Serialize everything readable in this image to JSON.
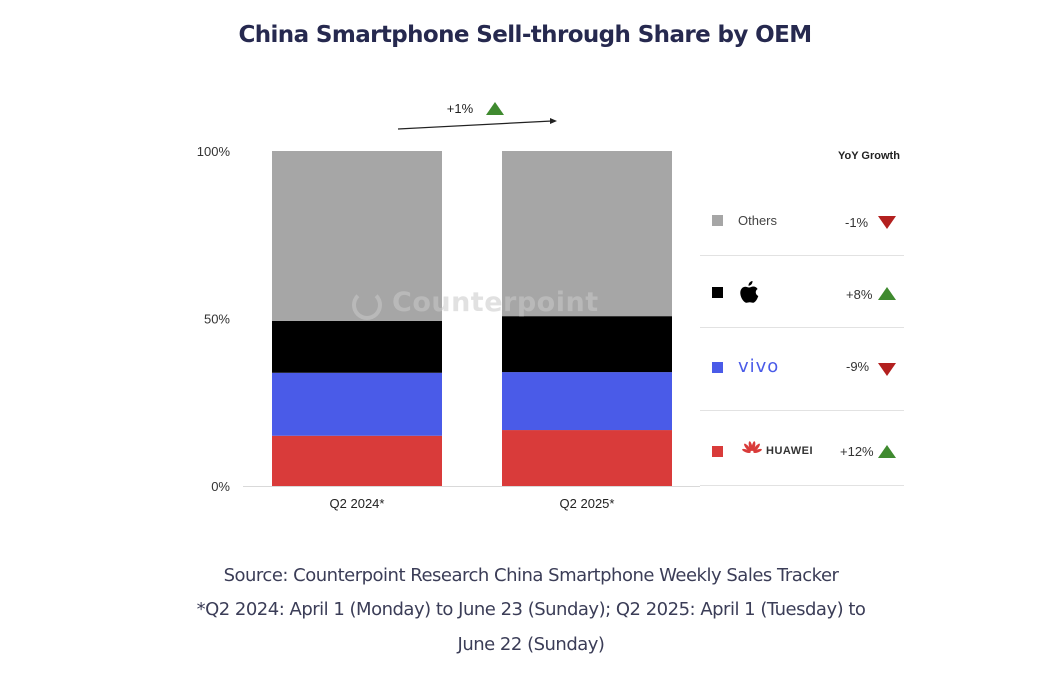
{
  "chart_data": {
    "type": "bar",
    "stacked": true,
    "title": "China Smartphone Sell-through Share by OEM",
    "xlabel": "",
    "ylabel": "",
    "ylim": [
      0,
      100
    ],
    "yticks": [
      0,
      50,
      100
    ],
    "ytick_labels": [
      "0%",
      "50%",
      "100%"
    ],
    "categories": [
      "Q2 2024*",
      "Q2 2025*"
    ],
    "series": [
      {
        "name": "HUAWEI",
        "color": "#d93b3a",
        "values": [
          15,
          16.7
        ]
      },
      {
        "name": "vivo",
        "color": "#4a5be8",
        "values": [
          18.8,
          17.3
        ]
      },
      {
        "name": "Apple",
        "color": "#000000",
        "values": [
          15.5,
          16.7
        ]
      },
      {
        "name": "Others",
        "color": "#a6a6a6",
        "values": [
          50.7,
          49.3
        ]
      }
    ],
    "annotation": {
      "text": "+1%",
      "direction": "up",
      "description": "Apple + vivo + HUAWEI combined share change"
    },
    "watermark": "Counterpoint",
    "grid": false,
    "legend_position": "right",
    "legend": {
      "header": "YoY Growth",
      "items": [
        {
          "name": "Others",
          "label": "Others",
          "color": "#a6a6a6",
          "growth": "-1%",
          "direction": "down"
        },
        {
          "name": "Apple",
          "label": "",
          "logo": "apple-logo",
          "color": "#000000",
          "growth": "+8%",
          "direction": "up"
        },
        {
          "name": "vivo",
          "label": "vivo",
          "color": "#4a5be8",
          "growth": "-9%",
          "direction": "down"
        },
        {
          "name": "HUAWEI",
          "label": "HUAWEI",
          "logo": "huawei-logo",
          "color": "#d93b3a",
          "growth": "+12%",
          "direction": "up"
        }
      ]
    }
  },
  "colors": {
    "up": "#3f8a2f",
    "down": "#b3201f",
    "title": "#26294f"
  },
  "footnotes": {
    "source": "Source: Counterpoint Research China Smartphone Weekly Sales Tracker",
    "line2": "*Q2 2024: April 1 (Monday) to June 23 (Sunday); Q2 2025: April 1 (Tuesday) to",
    "line3": "June 22 (Sunday)"
  }
}
